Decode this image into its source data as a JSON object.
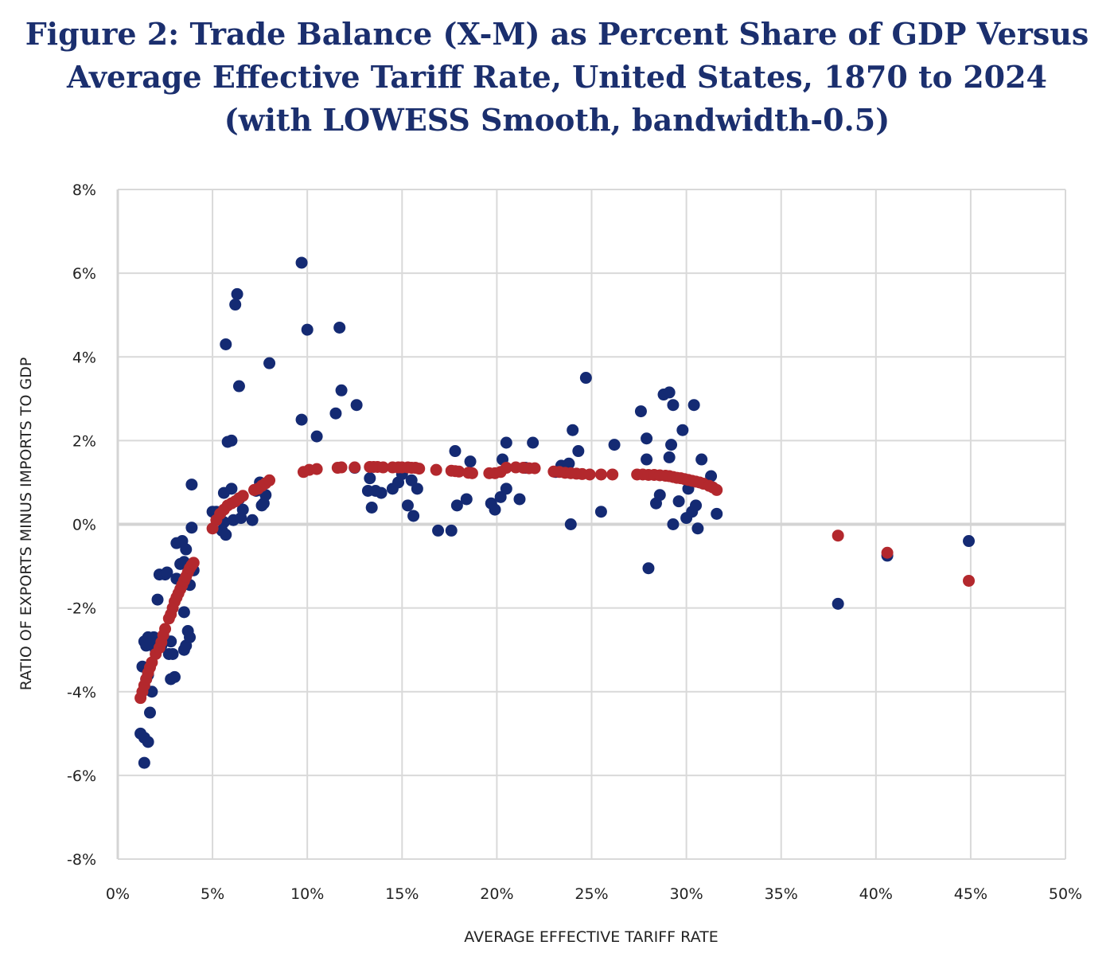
{
  "title_lines": [
    "Figure 2: Trade Balance (X-M) as Percent Share of GDP Versus",
    "Average Effective Tariff Rate, United States, 1870 to 2024",
    "(with LOWESS Smooth, bandwidth-0.5)"
  ],
  "colors": {
    "observed": "#142a73",
    "lowess": "#b3282d",
    "grid": "#d9d9d9",
    "zero_line": "#d4d4d4"
  },
  "chart_data": {
    "type": "scatter",
    "xlabel": "AVERAGE EFFECTIVE TARIFF RATE",
    "ylabel": "RATIO OF EXPORTS MINUS IMPORTS TO GDP",
    "xlim": [
      0,
      50
    ],
    "ylim": [
      -8,
      8
    ],
    "x_ticks": [
      0,
      5,
      10,
      15,
      20,
      25,
      30,
      35,
      40,
      45,
      50
    ],
    "x_tick_labels": [
      "0%",
      "5%",
      "10%",
      "15%",
      "20%",
      "25%",
      "30%",
      "35%",
      "40%",
      "45%",
      "50%"
    ],
    "y_ticks": [
      8,
      6,
      4,
      2,
      0,
      -2,
      -4,
      -6,
      -8
    ],
    "y_tick_labels": [
      "8%",
      "6%",
      "4%",
      "2%",
      "0%",
      "-2%",
      "-4%",
      "-6%",
      "-8%"
    ],
    "grid": true,
    "legend": "none",
    "series": [
      {
        "points": [
          [
            1.2,
            -5.0
          ],
          [
            1.4,
            -5.1
          ],
          [
            1.4,
            -5.7
          ],
          [
            1.6,
            -5.2
          ],
          [
            1.7,
            -4.5
          ],
          [
            1.8,
            -4.0
          ],
          [
            1.5,
            -3.7
          ],
          [
            1.3,
            -3.4
          ],
          [
            1.6,
            -3.6
          ],
          [
            1.5,
            -2.9
          ],
          [
            1.4,
            -2.8
          ],
          [
            1.6,
            -2.7
          ],
          [
            1.8,
            -2.75
          ],
          [
            1.9,
            -2.7
          ],
          [
            1.7,
            -2.85
          ],
          [
            2.0,
            -3.0
          ],
          [
            2.1,
            -1.8
          ],
          [
            2.2,
            -1.2
          ],
          [
            2.3,
            -2.9
          ],
          [
            2.5,
            -1.2
          ],
          [
            2.6,
            -1.15
          ],
          [
            2.7,
            -3.1
          ],
          [
            2.8,
            -2.8
          ],
          [
            2.9,
            -3.1
          ],
          [
            2.8,
            -3.7
          ],
          [
            3.0,
            -3.65
          ],
          [
            3.1,
            -1.3
          ],
          [
            3.1,
            -0.45
          ],
          [
            3.3,
            -0.95
          ],
          [
            3.4,
            -0.4
          ],
          [
            3.5,
            -0.9
          ],
          [
            3.6,
            -0.6
          ],
          [
            3.5,
            -2.1
          ],
          [
            3.5,
            -3.0
          ],
          [
            3.6,
            -2.9
          ],
          [
            3.7,
            -2.55
          ],
          [
            3.8,
            -2.7
          ],
          [
            3.8,
            -1.45
          ],
          [
            3.9,
            -0.08
          ],
          [
            3.9,
            0.95
          ],
          [
            4.0,
            -1.1
          ],
          [
            5.0,
            0.3
          ],
          [
            5.2,
            0.3
          ],
          [
            5.4,
            0.25
          ],
          [
            5.5,
            -0.15
          ],
          [
            5.6,
            0.05
          ],
          [
            5.7,
            -0.25
          ],
          [
            5.6,
            0.75
          ],
          [
            5.7,
            4.3
          ],
          [
            5.8,
            1.97
          ],
          [
            6.0,
            2.0
          ],
          [
            6.0,
            0.85
          ],
          [
            6.1,
            0.1
          ],
          [
            6.2,
            5.25
          ],
          [
            6.3,
            5.5
          ],
          [
            6.4,
            3.3
          ],
          [
            6.4,
            0.6
          ],
          [
            6.5,
            0.15
          ],
          [
            6.6,
            0.35
          ],
          [
            7.1,
            0.1
          ],
          [
            7.3,
            0.8
          ],
          [
            7.5,
            1.0
          ],
          [
            7.6,
            0.45
          ],
          [
            7.7,
            0.5
          ],
          [
            7.8,
            0.7
          ],
          [
            8.0,
            3.85
          ],
          [
            9.7,
            6.25
          ],
          [
            9.7,
            2.5
          ],
          [
            10.0,
            4.65
          ],
          [
            10.5,
            2.1
          ],
          [
            11.5,
            2.65
          ],
          [
            11.7,
            4.7
          ],
          [
            11.8,
            3.2
          ],
          [
            12.5,
            1.35
          ],
          [
            12.6,
            2.85
          ],
          [
            13.2,
            0.8
          ],
          [
            13.3,
            1.1
          ],
          [
            13.4,
            0.4
          ],
          [
            13.6,
            0.8
          ],
          [
            13.9,
            0.75
          ],
          [
            14.5,
            0.85
          ],
          [
            14.8,
            1.0
          ],
          [
            15.0,
            1.2
          ],
          [
            15.3,
            0.45
          ],
          [
            15.5,
            1.05
          ],
          [
            15.6,
            0.2
          ],
          [
            15.8,
            0.85
          ],
          [
            16.9,
            -0.15
          ],
          [
            17.6,
            -0.15
          ],
          [
            17.8,
            1.75
          ],
          [
            17.9,
            0.45
          ],
          [
            18.4,
            0.6
          ],
          [
            18.6,
            1.5
          ],
          [
            19.7,
            0.5
          ],
          [
            19.9,
            0.35
          ],
          [
            20.2,
            0.65
          ],
          [
            20.3,
            1.55
          ],
          [
            20.5,
            1.95
          ],
          [
            20.5,
            0.85
          ],
          [
            21.2,
            0.6
          ],
          [
            21.5,
            1.35
          ],
          [
            21.9,
            1.95
          ],
          [
            23.1,
            1.25
          ],
          [
            23.4,
            1.4
          ],
          [
            23.8,
            1.45
          ],
          [
            23.9,
            0.0
          ],
          [
            24.0,
            2.25
          ],
          [
            24.3,
            1.75
          ],
          [
            24.7,
            3.5
          ],
          [
            25.5,
            0.3
          ],
          [
            26.2,
            1.9
          ],
          [
            27.6,
            2.7
          ],
          [
            27.9,
            2.05
          ],
          [
            27.9,
            1.55
          ],
          [
            28.0,
            -1.05
          ],
          [
            28.4,
            0.5
          ],
          [
            28.6,
            0.7
          ],
          [
            28.8,
            3.1
          ],
          [
            29.1,
            3.15
          ],
          [
            29.1,
            1.6
          ],
          [
            29.2,
            1.9
          ],
          [
            29.3,
            2.85
          ],
          [
            29.3,
            0.0
          ],
          [
            29.6,
            0.55
          ],
          [
            29.8,
            2.25
          ],
          [
            30.0,
            0.15
          ],
          [
            30.1,
            0.85
          ],
          [
            30.3,
            0.3
          ],
          [
            30.4,
            2.85
          ],
          [
            30.5,
            0.45
          ],
          [
            30.6,
            -0.1
          ],
          [
            30.8,
            1.55
          ],
          [
            31.3,
            1.15
          ],
          [
            31.6,
            0.25
          ],
          [
            38.0,
            -1.9
          ],
          [
            40.6,
            -0.75
          ],
          [
            44.9,
            -0.4
          ]
        ]
      },
      {
        "points": [
          [
            1.2,
            -4.15
          ],
          [
            1.3,
            -4.0
          ],
          [
            1.4,
            -3.85
          ],
          [
            1.5,
            -3.7
          ],
          [
            1.6,
            -3.55
          ],
          [
            1.7,
            -3.42
          ],
          [
            1.8,
            -3.3
          ],
          [
            2.0,
            -3.1
          ],
          [
            2.2,
            -2.95
          ],
          [
            2.3,
            -2.82
          ],
          [
            2.4,
            -2.65
          ],
          [
            2.5,
            -2.5
          ],
          [
            2.7,
            -2.25
          ],
          [
            2.8,
            -2.15
          ],
          [
            2.9,
            -2.0
          ],
          [
            3.0,
            -1.85
          ],
          [
            3.1,
            -1.75
          ],
          [
            3.2,
            -1.65
          ],
          [
            3.3,
            -1.55
          ],
          [
            3.4,
            -1.45
          ],
          [
            3.5,
            -1.35
          ],
          [
            3.6,
            -1.25
          ],
          [
            3.7,
            -1.15
          ],
          [
            3.8,
            -1.05
          ],
          [
            3.9,
            -0.98
          ],
          [
            4.0,
            -0.92
          ],
          [
            5.0,
            -0.1
          ],
          [
            5.2,
            0.1
          ],
          [
            5.4,
            0.25
          ],
          [
            5.6,
            0.35
          ],
          [
            5.8,
            0.45
          ],
          [
            6.0,
            0.5
          ],
          [
            6.2,
            0.55
          ],
          [
            6.4,
            0.62
          ],
          [
            6.6,
            0.68
          ],
          [
            7.2,
            0.82
          ],
          [
            7.4,
            0.85
          ],
          [
            7.6,
            0.92
          ],
          [
            7.8,
            0.98
          ],
          [
            8.0,
            1.05
          ],
          [
            9.8,
            1.25
          ],
          [
            10.1,
            1.3
          ],
          [
            10.5,
            1.32
          ],
          [
            11.6,
            1.35
          ],
          [
            11.8,
            1.36
          ],
          [
            12.5,
            1.36
          ],
          [
            13.3,
            1.37
          ],
          [
            13.5,
            1.37
          ],
          [
            13.7,
            1.37
          ],
          [
            14.0,
            1.36
          ],
          [
            14.5,
            1.36
          ],
          [
            14.8,
            1.36
          ],
          [
            15.0,
            1.36
          ],
          [
            15.3,
            1.36
          ],
          [
            15.5,
            1.35
          ],
          [
            15.7,
            1.35
          ],
          [
            15.9,
            1.33
          ],
          [
            16.8,
            1.3
          ],
          [
            17.6,
            1.28
          ],
          [
            17.8,
            1.27
          ],
          [
            18.0,
            1.26
          ],
          [
            18.5,
            1.23
          ],
          [
            18.7,
            1.22
          ],
          [
            19.6,
            1.22
          ],
          [
            19.9,
            1.22
          ],
          [
            20.2,
            1.25
          ],
          [
            20.5,
            1.35
          ],
          [
            21.0,
            1.36
          ],
          [
            21.4,
            1.35
          ],
          [
            21.7,
            1.34
          ],
          [
            22.0,
            1.34
          ],
          [
            23.0,
            1.26
          ],
          [
            23.3,
            1.25
          ],
          [
            23.6,
            1.23
          ],
          [
            23.9,
            1.22
          ],
          [
            24.2,
            1.21
          ],
          [
            24.5,
            1.2
          ],
          [
            24.9,
            1.19
          ],
          [
            25.5,
            1.19
          ],
          [
            26.1,
            1.19
          ],
          [
            27.4,
            1.19
          ],
          [
            27.7,
            1.19
          ],
          [
            28.0,
            1.18
          ],
          [
            28.3,
            1.18
          ],
          [
            28.6,
            1.17
          ],
          [
            28.9,
            1.16
          ],
          [
            29.1,
            1.15
          ],
          [
            29.3,
            1.13
          ],
          [
            29.5,
            1.11
          ],
          [
            29.7,
            1.1
          ],
          [
            29.9,
            1.08
          ],
          [
            30.1,
            1.06
          ],
          [
            30.3,
            1.04
          ],
          [
            30.5,
            1.02
          ],
          [
            30.7,
            1.0
          ],
          [
            30.9,
            0.97
          ],
          [
            31.2,
            0.92
          ],
          [
            31.4,
            0.88
          ],
          [
            31.6,
            0.82
          ],
          [
            38.0,
            -0.27
          ],
          [
            40.6,
            -0.68
          ],
          [
            44.9,
            -1.35
          ]
        ]
      }
    ]
  }
}
